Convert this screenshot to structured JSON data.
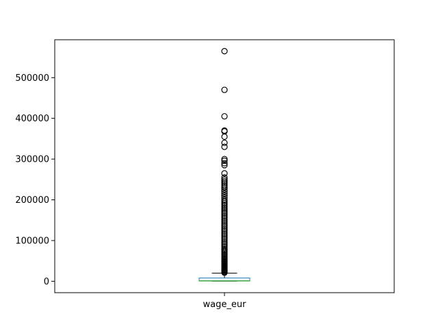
{
  "chart_data": {
    "type": "box",
    "title": "",
    "xlabel": "",
    "ylabel": "",
    "categories": [
      "wage_eur"
    ],
    "ylim": [
      -28000,
      593000
    ],
    "yticks": [
      0,
      100000,
      200000,
      300000,
      400000,
      500000
    ],
    "ytick_labels": [
      "0",
      "100000",
      "200000",
      "300000",
      "400000",
      "500000"
    ],
    "grid": false,
    "box": {
      "q1": 1000,
      "median": 1000,
      "q3": 8000,
      "whisker_low": 500,
      "whisker_high": 20000
    },
    "outliers": [
      565000,
      470000,
      405000,
      370000,
      368000,
      355000,
      340000,
      330000,
      300000,
      296000,
      290000,
      285000,
      265000,
      255000,
      250000,
      246000,
      242000,
      238000,
      234000,
      230000,
      225000,
      220000,
      215000,
      210000,
      205000,
      200000,
      196000,
      192000,
      188000,
      184000,
      180000,
      176000,
      172000,
      168000,
      164000,
      160000,
      156000,
      152000,
      148000,
      144000,
      140000,
      136000,
      132000,
      128000,
      124000,
      120000,
      116000,
      112000,
      108000,
      104000,
      100000,
      96000,
      92000,
      88000,
      84000,
      80000,
      77000,
      74000,
      71000,
      68000,
      65000,
      62000,
      59000,
      56000,
      53000,
      50000,
      48000,
      46000,
      44000,
      42000,
      40000,
      38000,
      36000,
      34000,
      32000,
      30000,
      28000,
      26000,
      24000,
      22000,
      21000
    ],
    "colors": {
      "box": "#1f77b4",
      "median": "#2ca02c",
      "whisker": "#000000",
      "outlier": "#000000"
    }
  }
}
